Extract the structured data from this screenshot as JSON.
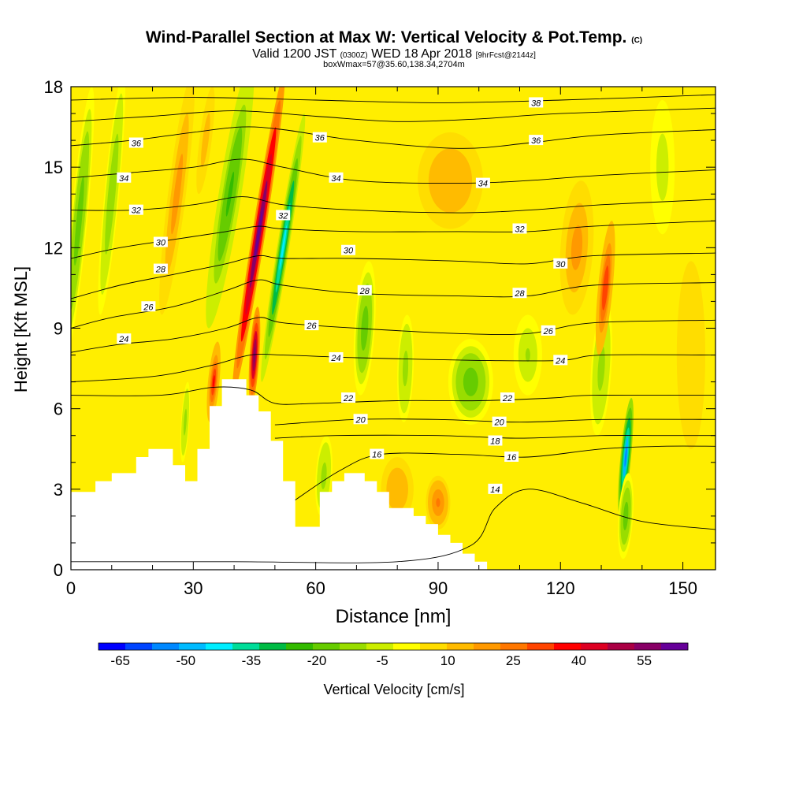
{
  "chart_data": {
    "type": "heatmap",
    "title_main": "Wind-Parallel Section at Max W: Vertical Velocity & Pot.Temp.",
    "title_copyright": "(C)",
    "subtitle_pre": "Valid 1200 JST",
    "subtitle_utc": "(0300Z)",
    "subtitle_post": "WED 18 Apr 2018",
    "subtitle_fcst": "[9hrFcst@2144z]",
    "subtitle2": "boxWmax=57@35.60,138.34,2704m",
    "xlabel": "Distance [nm]",
    "ylabel": "Height [Kft MSL]",
    "xlim": [
      0,
      158
    ],
    "ylim": [
      0,
      18
    ],
    "xticks": [
      "0",
      "30",
      "60",
      "90",
      "120",
      "150"
    ],
    "yticks": [
      "0",
      "3",
      "6",
      "9",
      "12",
      "15",
      "18"
    ],
    "colorbar": {
      "label": "Vertical Velocity [cm/s]",
      "ticks": [
        "-65",
        "-50",
        "-35",
        "-20",
        "-5",
        "10",
        "25",
        "40",
        "55"
      ],
      "colors": [
        "#0000ff",
        "#0044ff",
        "#0088ff",
        "#00bbff",
        "#00eeff",
        "#00dd99",
        "#00bb44",
        "#33bb00",
        "#66cc00",
        "#99dd00",
        "#ccee00",
        "#ffff00",
        "#ffdd00",
        "#ffbb00",
        "#ff9900",
        "#ff7700",
        "#ff4400",
        "#ff0000",
        "#dd0022",
        "#aa0044",
        "#880066",
        "#660099"
      ]
    },
    "terrain": [
      [
        0,
        2.9
      ],
      [
        6,
        2.9
      ],
      [
        6,
        3.3
      ],
      [
        10,
        3.3
      ],
      [
        10,
        3.6
      ],
      [
        16,
        3.6
      ],
      [
        16,
        4.2
      ],
      [
        19,
        4.2
      ],
      [
        19,
        4.5
      ],
      [
        25,
        4.5
      ],
      [
        25,
        3.9
      ],
      [
        28,
        3.9
      ],
      [
        28,
        3.3
      ],
      [
        31,
        3.3
      ],
      [
        31,
        4.5
      ],
      [
        34,
        4.5
      ],
      [
        34,
        6.1
      ],
      [
        37,
        6.1
      ],
      [
        37,
        7.1
      ],
      [
        43,
        7.1
      ],
      [
        43,
        6.5
      ],
      [
        46,
        6.5
      ],
      [
        46,
        5.9
      ],
      [
        49,
        5.9
      ],
      [
        49,
        4.8
      ],
      [
        52,
        4.8
      ],
      [
        52,
        3.3
      ],
      [
        55,
        3.3
      ],
      [
        55,
        1.6
      ],
      [
        61,
        1.6
      ],
      [
        61,
        2.9
      ],
      [
        64,
        2.9
      ],
      [
        64,
        3.3
      ],
      [
        67,
        3.3
      ],
      [
        67,
        3.6
      ],
      [
        72,
        3.6
      ],
      [
        72,
        3.3
      ],
      [
        75,
        3.3
      ],
      [
        75,
        2.9
      ],
      [
        78,
        2.9
      ],
      [
        78,
        2.3
      ],
      [
        84,
        2.3
      ],
      [
        84,
        2.0
      ],
      [
        87,
        2.0
      ],
      [
        87,
        1.7
      ],
      [
        90,
        1.7
      ],
      [
        90,
        1.3
      ],
      [
        93,
        1.3
      ],
      [
        93,
        1.0
      ],
      [
        96,
        1.0
      ],
      [
        96,
        0.6
      ],
      [
        99,
        0.6
      ],
      [
        99,
        0.3
      ],
      [
        102,
        0.3
      ],
      [
        102,
        0
      ],
      [
        0,
        0
      ]
    ],
    "theta_contours": [
      {
        "label": "14",
        "pts": [
          [
            0,
            0.3
          ],
          [
            40,
            0.3
          ],
          [
            80,
            0.3
          ],
          [
            98,
            0.9
          ],
          [
            104,
            2.3
          ],
          [
            112,
            3.0
          ],
          [
            125,
            2.5
          ],
          [
            140,
            1.8
          ],
          [
            158,
            1.5
          ]
        ]
      },
      {
        "label": "16",
        "pts": [
          [
            55,
            2.6
          ],
          [
            66,
            3.7
          ],
          [
            76,
            4.3
          ],
          [
            95,
            4.3
          ],
          [
            112,
            4.2
          ],
          [
            130,
            4.5
          ],
          [
            145,
            4.6
          ],
          [
            158,
            4.6
          ]
        ]
      },
      {
        "label": "18",
        "pts": [
          [
            50,
            4.9
          ],
          [
            65,
            5.0
          ],
          [
            90,
            5.0
          ],
          [
            110,
            4.9
          ],
          [
            130,
            5.0
          ],
          [
            145,
            5.0
          ],
          [
            158,
            5.0
          ]
        ]
      },
      {
        "label": "20",
        "pts": [
          [
            50,
            5.4
          ],
          [
            70,
            5.6
          ],
          [
            90,
            5.6
          ],
          [
            110,
            5.5
          ],
          [
            130,
            5.6
          ],
          [
            158,
            5.6
          ]
        ]
      },
      {
        "label": "22",
        "pts": [
          [
            0,
            6.5
          ],
          [
            22,
            6.5
          ],
          [
            35,
            6.8
          ],
          [
            44,
            6.7
          ],
          [
            50,
            6.2
          ],
          [
            60,
            6.2
          ],
          [
            80,
            6.3
          ],
          [
            100,
            6.3
          ],
          [
            118,
            6.4
          ],
          [
            128,
            6.5
          ],
          [
            158,
            6.5
          ]
        ]
      },
      {
        "label": "24",
        "pts": [
          [
            0,
            7.0
          ],
          [
            20,
            7.2
          ],
          [
            34,
            7.6
          ],
          [
            44,
            8.0
          ],
          [
            52,
            8.0
          ],
          [
            70,
            7.9
          ],
          [
            100,
            7.8
          ],
          [
            120,
            7.8
          ],
          [
            130,
            8.0
          ],
          [
            158,
            8.0
          ]
        ]
      },
      {
        "label": "24",
        "pts": [
          [
            0,
            8.1
          ],
          [
            12,
            8.4
          ],
          [
            25,
            8.6
          ],
          [
            38,
            9.0
          ],
          [
            46,
            9.4
          ],
          [
            52,
            9.2
          ],
          [
            70,
            9.0
          ],
          [
            95,
            8.8
          ],
          [
            112,
            8.8
          ],
          [
            128,
            9.2
          ],
          [
            158,
            9.3
          ]
        ]
      },
      {
        "label": "26",
        "pts": [
          [
            0,
            9.0
          ],
          [
            10,
            9.4
          ],
          [
            25,
            9.8
          ],
          [
            38,
            10.4
          ],
          [
            46,
            10.8
          ],
          [
            52,
            10.6
          ],
          [
            70,
            10.3
          ],
          [
            95,
            10.2
          ],
          [
            112,
            10.2
          ],
          [
            128,
            10.6
          ],
          [
            158,
            10.7
          ]
        ]
      },
      {
        "label": "28",
        "pts": [
          [
            0,
            10.1
          ],
          [
            12,
            10.6
          ],
          [
            25,
            11.0
          ],
          [
            38,
            11.4
          ],
          [
            46,
            11.7
          ],
          [
            52,
            11.6
          ],
          [
            70,
            11.6
          ],
          [
            95,
            11.5
          ],
          [
            112,
            11.4
          ],
          [
            128,
            11.7
          ],
          [
            158,
            11.8
          ]
        ]
      },
      {
        "label": "30",
        "pts": [
          [
            0,
            11.6
          ],
          [
            12,
            12.0
          ],
          [
            25,
            12.3
          ],
          [
            38,
            12.6
          ],
          [
            46,
            12.8
          ],
          [
            52,
            12.7
          ],
          [
            70,
            12.6
          ],
          [
            95,
            12.6
          ],
          [
            112,
            12.6
          ],
          [
            128,
            12.8
          ],
          [
            158,
            13.0
          ]
        ]
      },
      {
        "label": "32",
        "pts": [
          [
            0,
            13.4
          ],
          [
            15,
            13.4
          ],
          [
            30,
            13.6
          ],
          [
            42,
            13.9
          ],
          [
            52,
            13.6
          ],
          [
            70,
            13.4
          ],
          [
            95,
            13.3
          ],
          [
            112,
            13.4
          ],
          [
            130,
            13.6
          ],
          [
            158,
            13.8
          ]
        ]
      },
      {
        "label": "34",
        "pts": [
          [
            0,
            14.6
          ],
          [
            15,
            14.8
          ],
          [
            30,
            15.0
          ],
          [
            42,
            15.3
          ],
          [
            52,
            15.0
          ],
          [
            70,
            14.5
          ],
          [
            95,
            14.4
          ],
          [
            112,
            14.5
          ],
          [
            130,
            14.7
          ],
          [
            158,
            14.9
          ]
        ]
      },
      {
        "label": "36",
        "pts": [
          [
            0,
            15.8
          ],
          [
            15,
            16.0
          ],
          [
            30,
            16.3
          ],
          [
            42,
            16.5
          ],
          [
            52,
            16.4
          ],
          [
            70,
            16.0
          ],
          [
            95,
            15.7
          ],
          [
            112,
            15.9
          ],
          [
            130,
            16.2
          ],
          [
            158,
            16.4
          ]
        ]
      },
      {
        "label": "36",
        "pts": [
          [
            0,
            16.7
          ],
          [
            20,
            16.9
          ],
          [
            40,
            17.1
          ],
          [
            60,
            16.9
          ],
          [
            80,
            16.7
          ],
          [
            100,
            16.8
          ],
          [
            120,
            17.0
          ],
          [
            158,
            17.2
          ]
        ]
      },
      {
        "label": "38",
        "pts": [
          [
            0,
            17.5
          ],
          [
            30,
            17.6
          ],
          [
            60,
            17.5
          ],
          [
            90,
            17.4
          ],
          [
            120,
            17.5
          ],
          [
            158,
            17.7
          ]
        ]
      }
    ],
    "w_features": [
      {
        "x": 46,
        "y": 12.5,
        "rx": 1.6,
        "ry": 6.0,
        "tilt": 0.5,
        "w": 55
      },
      {
        "x": 45,
        "y": 8.0,
        "rx": 1.2,
        "ry": 1.8,
        "tilt": 0.2,
        "w": 50
      },
      {
        "x": 52,
        "y": 12.0,
        "rx": 1.5,
        "ry": 5.0,
        "tilt": 0.5,
        "w": -40
      },
      {
        "x": 39,
        "y": 14.0,
        "rx": 2.8,
        "ry": 5.0,
        "tilt": 0.5,
        "w": -25
      },
      {
        "x": 2.0,
        "y": 13.0,
        "rx": 2.0,
        "ry": 5.0,
        "tilt": 0.3,
        "w": -20
      },
      {
        "x": 10,
        "y": 14.0,
        "rx": 1.8,
        "ry": 4.5,
        "tilt": 0.3,
        "w": -16
      },
      {
        "x": 26,
        "y": 14.0,
        "rx": 2.2,
        "ry": 4.5,
        "tilt": 0.4,
        "w": 16
      },
      {
        "x": 33,
        "y": 16.0,
        "rx": 1.5,
        "ry": 2.0,
        "tilt": 0.4,
        "w": 10
      },
      {
        "x": 72,
        "y": 9.0,
        "rx": 2.5,
        "ry": 2.5,
        "tilt": 0.2,
        "w": -20
      },
      {
        "x": 82,
        "y": 7.5,
        "rx": 2.0,
        "ry": 2.0,
        "tilt": 0.1,
        "w": -15
      },
      {
        "x": 98,
        "y": 7.0,
        "rx": 5.5,
        "ry": 1.6,
        "tilt": 0.0,
        "w": -20
      },
      {
        "x": 112,
        "y": 8.0,
        "rx": 3.5,
        "ry": 1.5,
        "tilt": 0.0,
        "w": -12
      },
      {
        "x": 130,
        "y": 7.5,
        "rx": 2.5,
        "ry": 2.5,
        "tilt": 0.2,
        "w": -15
      },
      {
        "x": 136,
        "y": 4.2,
        "rx": 1.3,
        "ry": 2.2,
        "tilt": 0.3,
        "w": -55
      },
      {
        "x": 136,
        "y": 2.0,
        "rx": 1.8,
        "ry": 1.6,
        "tilt": 0.2,
        "w": -20
      },
      {
        "x": 131,
        "y": 10.5,
        "rx": 1.8,
        "ry": 2.5,
        "tilt": 0.3,
        "w": 28
      },
      {
        "x": 124,
        "y": 12.0,
        "rx": 4.0,
        "ry": 2.5,
        "tilt": 0.2,
        "w": 15
      },
      {
        "x": 93,
        "y": 14.5,
        "rx": 8.0,
        "ry": 1.8,
        "tilt": 0.0,
        "w": 12
      },
      {
        "x": 35,
        "y": 7.0,
        "rx": 1.4,
        "ry": 1.5,
        "tilt": 0.3,
        "w": 30
      },
      {
        "x": 28,
        "y": 5.5,
        "rx": 1.0,
        "ry": 1.5,
        "tilt": 0.2,
        "w": -15
      },
      {
        "x": 62,
        "y": 3.5,
        "rx": 2.0,
        "ry": 1.5,
        "tilt": 0.2,
        "w": -15
      },
      {
        "x": 90,
        "y": 2.5,
        "rx": 3.0,
        "ry": 1.0,
        "tilt": 0.0,
        "w": 20
      },
      {
        "x": 80,
        "y": 3.0,
        "rx": 4.0,
        "ry": 1.2,
        "tilt": 0.0,
        "w": 12
      },
      {
        "x": 145,
        "y": 15.0,
        "rx": 3.0,
        "ry": 2.5,
        "tilt": 0.0,
        "w": -8
      },
      {
        "x": 152,
        "y": 8.0,
        "rx": 3.5,
        "ry": 3.5,
        "tilt": 0.0,
        "w": 5
      }
    ],
    "contour_labels": [
      {
        "text": "36",
        "x": 16,
        "y": 15.9
      },
      {
        "text": "34",
        "x": 13,
        "y": 14.6
      },
      {
        "text": "32",
        "x": 16,
        "y": 13.4
      },
      {
        "text": "30",
        "x": 22,
        "y": 12.2
      },
      {
        "text": "28",
        "x": 22,
        "y": 11.2
      },
      {
        "text": "26",
        "x": 19,
        "y": 9.8
      },
      {
        "text": "24",
        "x": 13,
        "y": 8.6
      },
      {
        "text": "36",
        "x": 61,
        "y": 16.1
      },
      {
        "text": "34",
        "x": 65,
        "y": 14.6
      },
      {
        "text": "32",
        "x": 52,
        "y": 13.2
      },
      {
        "text": "30",
        "x": 68,
        "y": 11.9
      },
      {
        "text": "28",
        "x": 72,
        "y": 10.4
      },
      {
        "text": "26",
        "x": 59,
        "y": 9.1
      },
      {
        "text": "24",
        "x": 65,
        "y": 7.9
      },
      {
        "text": "22",
        "x": 68,
        "y": 6.4
      },
      {
        "text": "20",
        "x": 71,
        "y": 5.6
      },
      {
        "text": "16",
        "x": 75,
        "y": 4.3
      },
      {
        "text": "38",
        "x": 114,
        "y": 17.4
      },
      {
        "text": "36",
        "x": 114,
        "y": 16.0
      },
      {
        "text": "34",
        "x": 101,
        "y": 14.4
      },
      {
        "text": "32",
        "x": 110,
        "y": 12.7
      },
      {
        "text": "30",
        "x": 120,
        "y": 11.4
      },
      {
        "text": "28",
        "x": 110,
        "y": 10.3
      },
      {
        "text": "26",
        "x": 117,
        "y": 8.9
      },
      {
        "text": "24",
        "x": 120,
        "y": 7.8
      },
      {
        "text": "22",
        "x": 107,
        "y": 6.4
      },
      {
        "text": "20",
        "x": 105,
        "y": 5.5
      },
      {
        "text": "18",
        "x": 104,
        "y": 4.8
      },
      {
        "text": "16",
        "x": 108,
        "y": 4.2
      },
      {
        "text": "14",
        "x": 104,
        "y": 3.0
      }
    ]
  }
}
